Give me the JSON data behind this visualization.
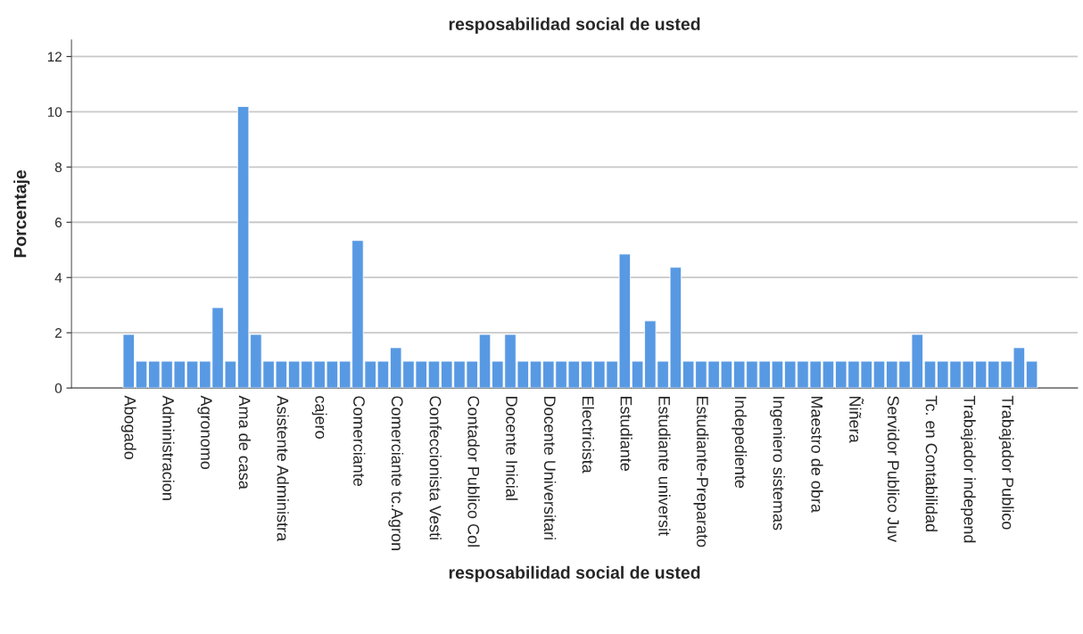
{
  "chart_data": {
    "type": "bar",
    "title": "resposabilidad social de usted",
    "xlabel": "resposabilidad social de usted",
    "ylabel": "Porcentaje",
    "categories": [
      "Abogado",
      null,
      null,
      "Administracion",
      null,
      null,
      "Agronomo",
      null,
      null,
      "Ama de casa",
      null,
      null,
      "Asistente Administra",
      null,
      null,
      "cajero",
      null,
      null,
      "Comerciante",
      null,
      null,
      "Comerciante tc.Agron",
      null,
      null,
      "Confeccionista Vesti",
      null,
      null,
      "Contador Publico Col",
      null,
      null,
      "Docente Inicial",
      null,
      null,
      "Docente Universitari",
      null,
      null,
      "Electricista",
      null,
      null,
      "Estudiante",
      null,
      null,
      "Estudiante universit",
      null,
      null,
      "Estudiante-Preparato",
      null,
      null,
      "Indepediente",
      null,
      null,
      "Ingeniero sistemas",
      null,
      null,
      "Maestro de obra",
      null,
      null,
      "Ñiñera",
      null,
      null,
      "Servidor Publico Juv",
      null,
      null,
      "Tc. en Contabilidad",
      null,
      null,
      "Trabajador independ",
      null,
      null,
      "Trabajador Publico",
      null,
      null
    ],
    "values": [
      1.94,
      0.97,
      0.97,
      0.97,
      0.97,
      0.97,
      0.97,
      2.91,
      0.97,
      10.19,
      1.94,
      0.97,
      0.97,
      0.97,
      0.97,
      0.97,
      0.97,
      0.97,
      5.34,
      0.97,
      0.97,
      1.46,
      0.97,
      0.97,
      0.97,
      0.97,
      0.97,
      0.97,
      1.94,
      0.97,
      1.94,
      0.97,
      0.97,
      0.97,
      0.97,
      0.97,
      0.97,
      0.97,
      0.97,
      4.85,
      0.97,
      2.43,
      0.97,
      4.37,
      0.97,
      0.97,
      0.97,
      0.97,
      0.97,
      0.97,
      0.97,
      0.97,
      0.97,
      0.97,
      0.97,
      0.97,
      0.97,
      0.97,
      0.97,
      0.97,
      0.97,
      0.97,
      1.94,
      0.97,
      0.97,
      0.97,
      0.97,
      0.97,
      0.97,
      0.97,
      1.46,
      0.97
    ],
    "color": "#5899e3",
    "ylim": [
      0,
      12.6
    ],
    "yticks": [
      0,
      2,
      4,
      6,
      8,
      10,
      12
    ],
    "grid": "y",
    "legend": false
  }
}
